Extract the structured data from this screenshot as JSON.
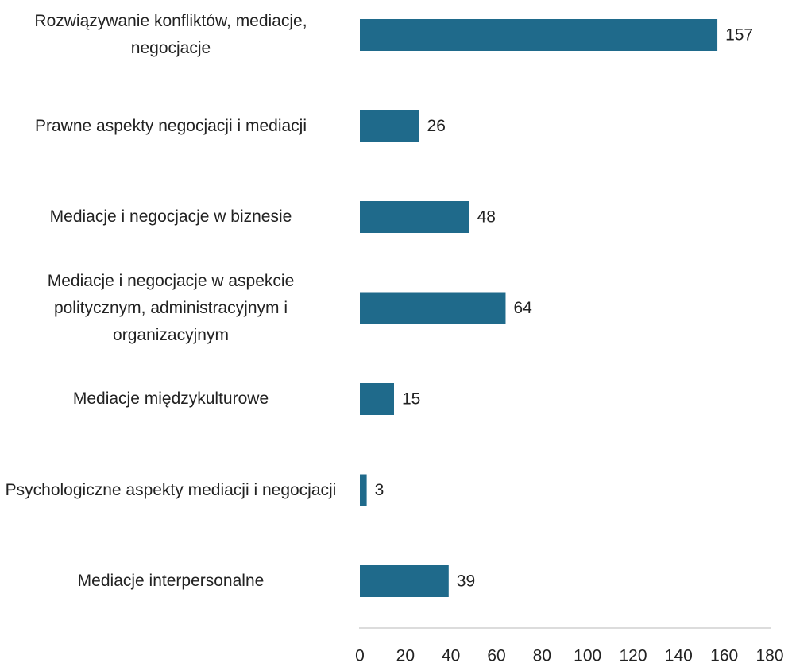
{
  "chart_data": {
    "type": "barh",
    "categories": [
      "Rozwiązywanie konfliktów, mediacje, negocjacje",
      "Prawne aspekty negocjacji i mediacji",
      "Mediacje i negocjacje w biznesie",
      "Mediacje i negocjacje w aspekcie politycznym, administracyjnym i organizacyjnym",
      "Mediacje międzykulturowe",
      "Psychologiczne aspekty mediacji i negocjacji",
      "Mediacje interpersonalne"
    ],
    "values": [
      157,
      26,
      48,
      64,
      15,
      3,
      39
    ],
    "color": "#1f6a8b",
    "xlim": [
      0,
      180
    ],
    "xticks": [
      0,
      20,
      40,
      60,
      80,
      100,
      120,
      140,
      160,
      180
    ]
  }
}
